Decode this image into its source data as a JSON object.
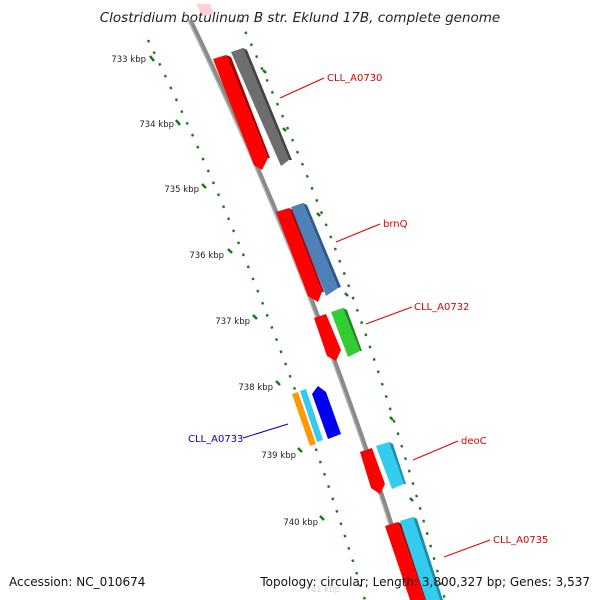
{
  "title": "Clostridium botulinum B str. Eklund 17B, complete genome",
  "accession": "Accession: NC_010674",
  "summary": "Topology: circular; Length: 3,800,327 bp; Genes: 3,537",
  "ticks": [
    "733 kbp",
    "734 kbp",
    "735 kbp",
    "736 kbp",
    "737 kbp",
    "738 kbp",
    "739 kbp",
    "740 kbp",
    "741 kbp"
  ],
  "gene_labels": [
    {
      "text": "CLL_A0730",
      "color": "#e00000"
    },
    {
      "text": "brnQ",
      "color": "#e00000"
    },
    {
      "text": "CLL_A0732",
      "color": "#e00000"
    },
    {
      "text": "CLL_A0733",
      "color": "#0000cc"
    },
    {
      "text": "deoC",
      "color": "#e00000"
    },
    {
      "text": "CLL_A0735",
      "color": "#e00000"
    }
  ],
  "colors": {
    "backbone": "#8a8a8a",
    "cds": "#ff0000",
    "tick": "#1a7a1a",
    "gray_feature": "#6e6e6e",
    "steelblue_feature": "#4f81b8",
    "green_feature": "#33cc33",
    "orange_feature": "#ff9900",
    "cyan_feature": "#33ccee",
    "blue_feature": "#0000ee"
  }
}
